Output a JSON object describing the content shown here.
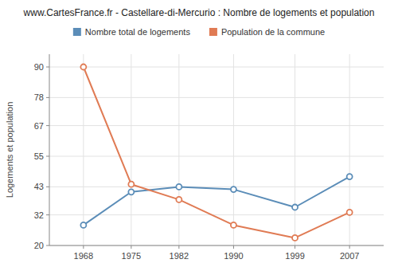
{
  "chart_data": {
    "type": "line",
    "title": "www.CartesFrance.fr - Castellare-di-Mercurio : Nombre de logements et population",
    "ylabel": "Logements et population",
    "x": [
      1968,
      1975,
      1982,
      1990,
      1999,
      2007
    ],
    "series": [
      {
        "name": "Nombre total de logements",
        "color": "#5b8db8",
        "values": [
          28,
          41,
          43,
          42,
          35,
          47
        ]
      },
      {
        "name": "Population de la commune",
        "color": "#e07b54",
        "values": [
          90,
          44,
          38,
          28,
          23,
          33
        ]
      }
    ],
    "xlim": [
      1963,
      2012
    ],
    "xticks": [
      1968,
      1975,
      1982,
      1990,
      1999,
      2007
    ],
    "ylim": [
      20,
      95
    ],
    "yticks": [
      20,
      32,
      43,
      55,
      67,
      78,
      90
    ],
    "grid": true,
    "legend": "top",
    "marker": "circle"
  }
}
